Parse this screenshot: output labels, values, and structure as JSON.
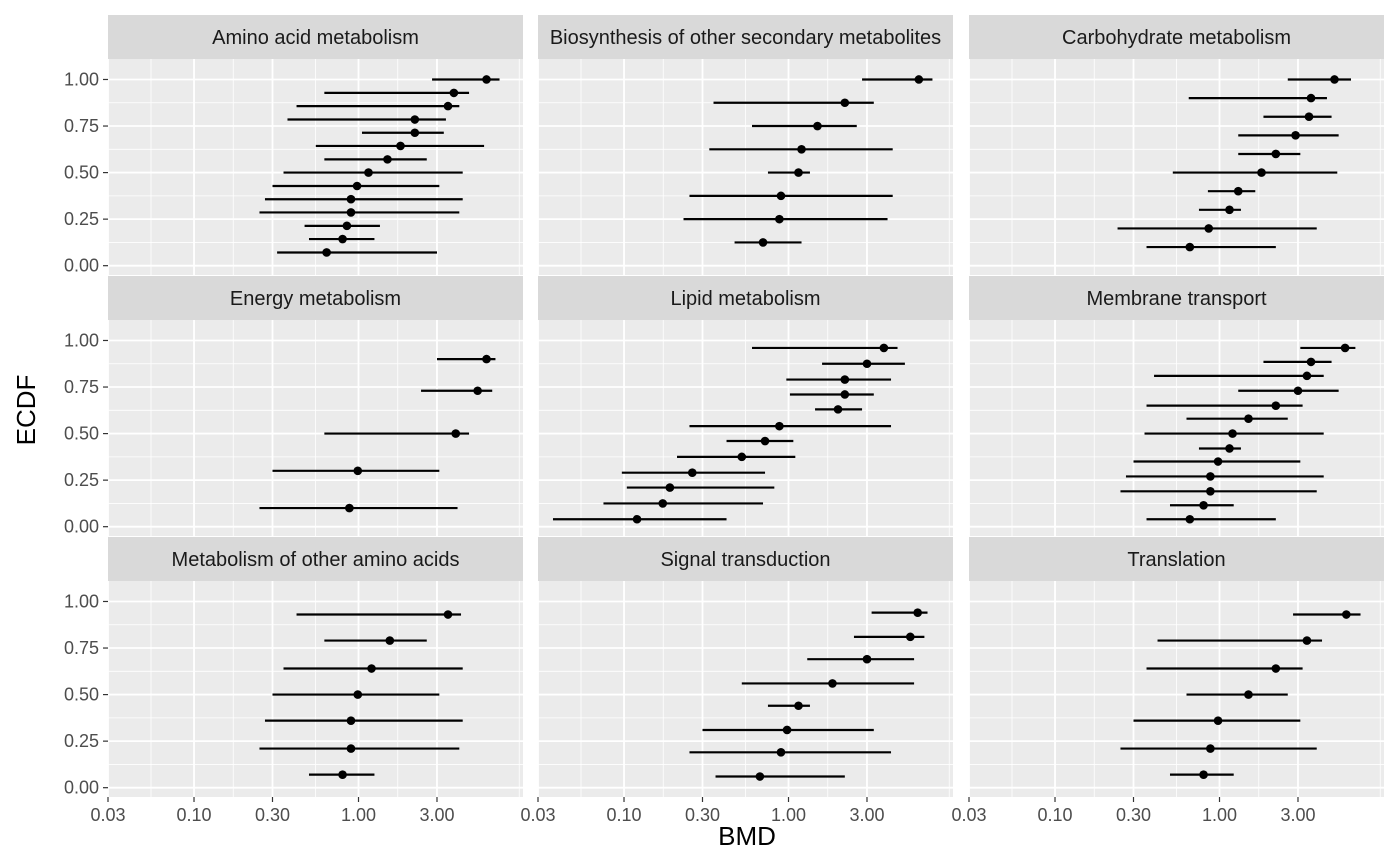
{
  "chart_data": {
    "type": "scatter",
    "subtype": "faceted point-range plot",
    "xlabel": "BMD",
    "ylabel": "ECDF",
    "x_scale": "log10",
    "xlim": [
      0.03,
      10
    ],
    "ylim": [
      0,
      1
    ],
    "x_ticks": [
      "0.03",
      "0.10",
      "0.30",
      "1.00",
      "3.00"
    ],
    "y_ticks": [
      "0.00",
      "0.25",
      "0.50",
      "0.75",
      "1.00"
    ],
    "grid": true,
    "legend": "none",
    "colors": {
      "panel": "#ebebeb",
      "strip": "#d9d9d9",
      "point": "#000000",
      "grid": "#ffffff"
    },
    "facets": [
      {
        "label": "Amino acid metabolism",
        "points": [
          {
            "ecdf": 1.0,
            "x": 6.0,
            "low": 2.8,
            "high": 7.2
          },
          {
            "ecdf": 0.928,
            "x": 3.8,
            "low": 0.62,
            "high": 4.7
          },
          {
            "ecdf": 0.857,
            "x": 3.5,
            "low": 0.42,
            "high": 4.1
          },
          {
            "ecdf": 0.785,
            "x": 2.2,
            "low": 0.37,
            "high": 3.4
          },
          {
            "ecdf": 0.714,
            "x": 2.2,
            "low": 1.05,
            "high": 3.3
          },
          {
            "ecdf": 0.643,
            "x": 1.8,
            "low": 0.55,
            "high": 5.8
          },
          {
            "ecdf": 0.571,
            "x": 1.5,
            "low": 0.62,
            "high": 2.6
          },
          {
            "ecdf": 0.5,
            "x": 1.15,
            "low": 0.35,
            "high": 4.3
          },
          {
            "ecdf": 0.428,
            "x": 0.98,
            "low": 0.3,
            "high": 3.1
          },
          {
            "ecdf": 0.357,
            "x": 0.9,
            "low": 0.27,
            "high": 4.3
          },
          {
            "ecdf": 0.286,
            "x": 0.9,
            "low": 0.25,
            "high": 4.1
          },
          {
            "ecdf": 0.214,
            "x": 0.85,
            "low": 0.47,
            "high": 1.35
          },
          {
            "ecdf": 0.143,
            "x": 0.8,
            "low": 0.5,
            "high": 1.25
          },
          {
            "ecdf": 0.071,
            "x": 0.64,
            "low": 0.32,
            "high": 3.0
          }
        ]
      },
      {
        "label": "Biosynthesis of other secondary metabolites",
        "points": [
          {
            "ecdf": 1.0,
            "x": 6.2,
            "low": 2.8,
            "high": 7.5
          },
          {
            "ecdf": 0.875,
            "x": 2.2,
            "low": 0.35,
            "high": 3.3
          },
          {
            "ecdf": 0.75,
            "x": 1.5,
            "low": 0.6,
            "high": 2.6
          },
          {
            "ecdf": 0.625,
            "x": 1.2,
            "low": 0.33,
            "high": 4.3
          },
          {
            "ecdf": 0.5,
            "x": 1.15,
            "low": 0.75,
            "high": 1.35
          },
          {
            "ecdf": 0.375,
            "x": 0.9,
            "low": 0.25,
            "high": 4.3
          },
          {
            "ecdf": 0.25,
            "x": 0.88,
            "low": 0.23,
            "high": 4.0
          },
          {
            "ecdf": 0.125,
            "x": 0.7,
            "low": 0.47,
            "high": 1.2
          }
        ]
      },
      {
        "label": "Carbohydrate metabolism",
        "points": [
          {
            "ecdf": 1.0,
            "x": 5.0,
            "low": 2.6,
            "high": 6.3
          },
          {
            "ecdf": 0.9,
            "x": 3.6,
            "low": 0.65,
            "high": 4.5
          },
          {
            "ecdf": 0.8,
            "x": 3.5,
            "low": 1.85,
            "high": 4.8
          },
          {
            "ecdf": 0.7,
            "x": 2.9,
            "low": 1.3,
            "high": 5.3
          },
          {
            "ecdf": 0.6,
            "x": 2.2,
            "low": 1.3,
            "high": 3.1
          },
          {
            "ecdf": 0.5,
            "x": 1.8,
            "low": 0.52,
            "high": 5.2
          },
          {
            "ecdf": 0.4,
            "x": 1.3,
            "low": 0.85,
            "high": 1.65
          },
          {
            "ecdf": 0.3,
            "x": 1.15,
            "low": 0.75,
            "high": 1.35
          },
          {
            "ecdf": 0.2,
            "x": 0.86,
            "low": 0.24,
            "high": 3.9
          },
          {
            "ecdf": 0.1,
            "x": 0.66,
            "low": 0.36,
            "high": 2.2
          }
        ]
      },
      {
        "label": "Energy metabolism",
        "points": [
          {
            "ecdf": 0.9,
            "x": 6.0,
            "low": 3.0,
            "high": 6.8
          },
          {
            "ecdf": 0.73,
            "x": 5.3,
            "low": 2.4,
            "high": 6.5
          },
          {
            "ecdf": 0.5,
            "x": 3.9,
            "low": 0.62,
            "high": 4.7
          },
          {
            "ecdf": 0.3,
            "x": 0.99,
            "low": 0.3,
            "high": 3.1
          },
          {
            "ecdf": 0.1,
            "x": 0.88,
            "low": 0.25,
            "high": 4.0
          }
        ]
      },
      {
        "label": "Lipid metabolism",
        "points": [
          {
            "ecdf": 0.96,
            "x": 3.8,
            "low": 0.6,
            "high": 4.6
          },
          {
            "ecdf": 0.875,
            "x": 3.0,
            "low": 1.6,
            "high": 5.1
          },
          {
            "ecdf": 0.79,
            "x": 2.2,
            "low": 0.97,
            "high": 4.2
          },
          {
            "ecdf": 0.71,
            "x": 2.2,
            "low": 1.02,
            "high": 3.3
          },
          {
            "ecdf": 0.63,
            "x": 2.0,
            "low": 1.45,
            "high": 2.8
          },
          {
            "ecdf": 0.54,
            "x": 0.88,
            "low": 0.25,
            "high": 4.2
          },
          {
            "ecdf": 0.46,
            "x": 0.72,
            "low": 0.42,
            "high": 1.07
          },
          {
            "ecdf": 0.375,
            "x": 0.52,
            "low": 0.21,
            "high": 1.1
          },
          {
            "ecdf": 0.29,
            "x": 0.26,
            "low": 0.097,
            "high": 0.72
          },
          {
            "ecdf": 0.21,
            "x": 0.19,
            "low": 0.104,
            "high": 0.82
          },
          {
            "ecdf": 0.125,
            "x": 0.172,
            "low": 0.075,
            "high": 0.7
          },
          {
            "ecdf": 0.04,
            "x": 0.12,
            "low": 0.037,
            "high": 0.42
          }
        ]
      },
      {
        "label": "Membrane transport",
        "points": [
          {
            "ecdf": 0.96,
            "x": 5.8,
            "low": 3.1,
            "high": 6.7
          },
          {
            "ecdf": 0.885,
            "x": 3.6,
            "low": 1.85,
            "high": 4.8
          },
          {
            "ecdf": 0.81,
            "x": 3.4,
            "low": 0.4,
            "high": 4.3
          },
          {
            "ecdf": 0.73,
            "x": 3.0,
            "low": 1.3,
            "high": 5.3
          },
          {
            "ecdf": 0.65,
            "x": 2.2,
            "low": 0.36,
            "high": 3.2
          },
          {
            "ecdf": 0.58,
            "x": 1.5,
            "low": 0.63,
            "high": 2.6
          },
          {
            "ecdf": 0.5,
            "x": 1.2,
            "low": 0.35,
            "high": 4.3
          },
          {
            "ecdf": 0.42,
            "x": 1.15,
            "low": 0.75,
            "high": 1.35
          },
          {
            "ecdf": 0.35,
            "x": 0.98,
            "low": 0.3,
            "high": 3.1
          },
          {
            "ecdf": 0.27,
            "x": 0.88,
            "low": 0.27,
            "high": 4.3
          },
          {
            "ecdf": 0.19,
            "x": 0.88,
            "low": 0.25,
            "high": 3.9
          },
          {
            "ecdf": 0.115,
            "x": 0.8,
            "low": 0.5,
            "high": 1.22
          },
          {
            "ecdf": 0.04,
            "x": 0.66,
            "low": 0.36,
            "high": 2.2
          }
        ]
      },
      {
        "label": "Metabolism of other amino acids",
        "points": [
          {
            "ecdf": 0.93,
            "x": 3.5,
            "low": 0.42,
            "high": 4.2
          },
          {
            "ecdf": 0.79,
            "x": 1.55,
            "low": 0.62,
            "high": 2.6
          },
          {
            "ecdf": 0.64,
            "x": 1.2,
            "low": 0.35,
            "high": 4.3
          },
          {
            "ecdf": 0.5,
            "x": 0.99,
            "low": 0.3,
            "high": 3.1
          },
          {
            "ecdf": 0.36,
            "x": 0.9,
            "low": 0.27,
            "high": 4.3
          },
          {
            "ecdf": 0.21,
            "x": 0.9,
            "low": 0.25,
            "high": 4.1
          },
          {
            "ecdf": 0.07,
            "x": 0.8,
            "low": 0.5,
            "high": 1.25
          }
        ]
      },
      {
        "label": "Signal transduction",
        "points": [
          {
            "ecdf": 0.94,
            "x": 6.1,
            "low": 3.2,
            "high": 7.0
          },
          {
            "ecdf": 0.81,
            "x": 5.5,
            "low": 2.5,
            "high": 6.7
          },
          {
            "ecdf": 0.69,
            "x": 3.0,
            "low": 1.3,
            "high": 5.8
          },
          {
            "ecdf": 0.56,
            "x": 1.85,
            "low": 0.52,
            "high": 5.8
          },
          {
            "ecdf": 0.44,
            "x": 1.15,
            "low": 0.75,
            "high": 1.35
          },
          {
            "ecdf": 0.31,
            "x": 0.98,
            "low": 0.3,
            "high": 3.3
          },
          {
            "ecdf": 0.19,
            "x": 0.9,
            "low": 0.25,
            "high": 4.2
          },
          {
            "ecdf": 0.06,
            "x": 0.67,
            "low": 0.36,
            "high": 2.2
          }
        ]
      },
      {
        "label": "Translation",
        "points": [
          {
            "ecdf": 0.93,
            "x": 5.9,
            "low": 2.8,
            "high": 7.2
          },
          {
            "ecdf": 0.79,
            "x": 3.4,
            "low": 0.42,
            "high": 4.2
          },
          {
            "ecdf": 0.64,
            "x": 2.2,
            "low": 0.36,
            "high": 3.2
          },
          {
            "ecdf": 0.5,
            "x": 1.5,
            "low": 0.63,
            "high": 2.6
          },
          {
            "ecdf": 0.36,
            "x": 0.98,
            "low": 0.3,
            "high": 3.1
          },
          {
            "ecdf": 0.21,
            "x": 0.88,
            "low": 0.25,
            "high": 3.9
          },
          {
            "ecdf": 0.07,
            "x": 0.8,
            "low": 0.5,
            "high": 1.22
          }
        ]
      }
    ]
  }
}
